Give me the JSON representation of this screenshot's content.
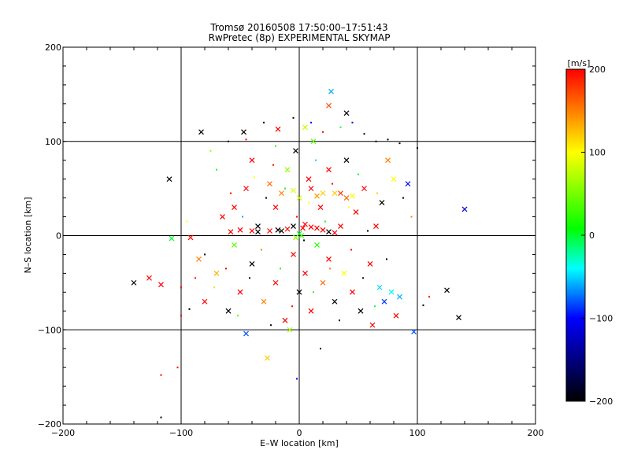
{
  "chart_data": {
    "type": "scatter",
    "title": "Tromsø 20160508 17:50:00–17:51:43",
    "subtitle": "RwPretec (8p) EXPERIMENTAL SKYMAP",
    "xlabel": "E–W location [km]",
    "ylabel": "N–S location [km]",
    "xlim": [
      -200,
      200
    ],
    "ylim": [
      -200,
      200
    ],
    "x_ticks": [
      -200,
      -100,
      0,
      100,
      200
    ],
    "y_ticks": [
      -200,
      -100,
      0,
      100,
      200
    ],
    "x_tick_labels": [
      "−200",
      "−100",
      "0",
      "100",
      "200"
    ],
    "y_tick_labels": [
      "−200",
      "−100",
      "0",
      "100",
      "200"
    ],
    "grid": true,
    "colorbar": {
      "label": "[m/s]",
      "range": [
        -200,
        200
      ],
      "ticks": [
        200,
        100,
        0,
        -100,
        -200
      ],
      "tick_labels": [
        "200",
        "100",
        "0",
        "−100",
        "−200"
      ],
      "colormap": [
        "#000000",
        "#0000ff",
        "#00ffff",
        "#00ff00",
        "#ffff00",
        "#ff0000"
      ]
    },
    "marker_types": [
      "cross",
      "dot"
    ],
    "points": [
      {
        "x": -83,
        "y": 110,
        "v": -200,
        "m": "cross"
      },
      {
        "x": -47,
        "y": 110,
        "v": -200,
        "m": "cross"
      },
      {
        "x": 25,
        "y": 138,
        "v": 170,
        "m": "cross"
      },
      {
        "x": 27,
        "y": 153,
        "v": -60,
        "m": "cross"
      },
      {
        "x": 40,
        "y": 130,
        "v": -200,
        "m": "cross"
      },
      {
        "x": -18,
        "y": 113,
        "v": 200,
        "m": "cross"
      },
      {
        "x": 5,
        "y": 115,
        "v": 80,
        "m": "cross"
      },
      {
        "x": -110,
        "y": 60,
        "v": -200,
        "m": "cross"
      },
      {
        "x": -108,
        "y": -3,
        "v": 0,
        "m": "cross"
      },
      {
        "x": -140,
        "y": -50,
        "v": -200,
        "m": "cross"
      },
      {
        "x": -127,
        "y": -45,
        "v": 200,
        "m": "cross"
      },
      {
        "x": -117,
        "y": -52,
        "v": 200,
        "m": "cross"
      },
      {
        "x": -92,
        "y": -2,
        "v": 200,
        "m": "cross"
      },
      {
        "x": -85,
        "y": -25,
        "v": 150,
        "m": "cross"
      },
      {
        "x": -80,
        "y": -70,
        "v": 200,
        "m": "cross"
      },
      {
        "x": -70,
        "y": -40,
        "v": 130,
        "m": "cross"
      },
      {
        "x": -65,
        "y": 20,
        "v": 200,
        "m": "cross"
      },
      {
        "x": -60,
        "y": -80,
        "v": -200,
        "m": "cross"
      },
      {
        "x": -55,
        "y": 30,
        "v": 200,
        "m": "cross"
      },
      {
        "x": -55,
        "y": -10,
        "v": 40,
        "m": "cross"
      },
      {
        "x": -50,
        "y": -60,
        "v": 200,
        "m": "cross"
      },
      {
        "x": -45,
        "y": 50,
        "v": 200,
        "m": "cross"
      },
      {
        "x": -45,
        "y": -104,
        "v": -80,
        "m": "cross"
      },
      {
        "x": -40,
        "y": 80,
        "v": 200,
        "m": "cross"
      },
      {
        "x": -40,
        "y": -30,
        "v": -200,
        "m": "cross"
      },
      {
        "x": -35,
        "y": 10,
        "v": -200,
        "m": "cross"
      },
      {
        "x": -30,
        "y": -70,
        "v": 150,
        "m": "cross"
      },
      {
        "x": -27,
        "y": -130,
        "v": 120,
        "m": "cross"
      },
      {
        "x": -25,
        "y": 55,
        "v": 160,
        "m": "cross"
      },
      {
        "x": -20,
        "y": 30,
        "v": 200,
        "m": "cross"
      },
      {
        "x": -20,
        "y": -50,
        "v": 200,
        "m": "cross"
      },
      {
        "x": -15,
        "y": 5,
        "v": -200,
        "m": "cross"
      },
      {
        "x": -12,
        "y": -90,
        "v": 200,
        "m": "cross"
      },
      {
        "x": -10,
        "y": 70,
        "v": 60,
        "m": "cross"
      },
      {
        "x": -8,
        "y": -100,
        "v": 70,
        "m": "cross"
      },
      {
        "x": -5,
        "y": -20,
        "v": 200,
        "m": "cross"
      },
      {
        "x": -3,
        "y": 90,
        "v": -200,
        "m": "cross"
      },
      {
        "x": 0,
        "y": 40,
        "v": 80,
        "m": "cross"
      },
      {
        "x": 0,
        "y": -60,
        "v": -200,
        "m": "cross"
      },
      {
        "x": 3,
        "y": 8,
        "v": 200,
        "m": "cross"
      },
      {
        "x": 5,
        "y": -40,
        "v": 200,
        "m": "cross"
      },
      {
        "x": 8,
        "y": 60,
        "v": 200,
        "m": "cross"
      },
      {
        "x": 10,
        "y": -80,
        "v": 200,
        "m": "cross"
      },
      {
        "x": 12,
        "y": 100,
        "v": 40,
        "m": "cross"
      },
      {
        "x": 15,
        "y": -10,
        "v": 20,
        "m": "cross"
      },
      {
        "x": 18,
        "y": 30,
        "v": 200,
        "m": "cross"
      },
      {
        "x": 20,
        "y": -50,
        "v": 160,
        "m": "cross"
      },
      {
        "x": 25,
        "y": 70,
        "v": 200,
        "m": "cross"
      },
      {
        "x": 25,
        "y": -25,
        "v": 200,
        "m": "cross"
      },
      {
        "x": 30,
        "y": 45,
        "v": 120,
        "m": "cross"
      },
      {
        "x": 30,
        "y": -70,
        "v": -200,
        "m": "cross"
      },
      {
        "x": 35,
        "y": 10,
        "v": 200,
        "m": "cross"
      },
      {
        "x": 38,
        "y": -40,
        "v": 100,
        "m": "cross"
      },
      {
        "x": 40,
        "y": 80,
        "v": -200,
        "m": "cross"
      },
      {
        "x": 45,
        "y": -60,
        "v": 200,
        "m": "cross"
      },
      {
        "x": 48,
        "y": 25,
        "v": 200,
        "m": "cross"
      },
      {
        "x": 52,
        "y": -80,
        "v": -200,
        "m": "cross"
      },
      {
        "x": 55,
        "y": 50,
        "v": 200,
        "m": "cross"
      },
      {
        "x": 60,
        "y": -30,
        "v": 200,
        "m": "cross"
      },
      {
        "x": 62,
        "y": -95,
        "v": 200,
        "m": "cross"
      },
      {
        "x": 65,
        "y": 10,
        "v": 200,
        "m": "cross"
      },
      {
        "x": 68,
        "y": -55,
        "v": -50,
        "m": "cross"
      },
      {
        "x": 70,
        "y": 35,
        "v": -200,
        "m": "cross"
      },
      {
        "x": 72,
        "y": -70,
        "v": -90,
        "m": "cross"
      },
      {
        "x": 75,
        "y": 80,
        "v": 150,
        "m": "cross"
      },
      {
        "x": 78,
        "y": -60,
        "v": -40,
        "m": "cross"
      },
      {
        "x": 80,
        "y": 60,
        "v": 100,
        "m": "cross"
      },
      {
        "x": 82,
        "y": -85,
        "v": 200,
        "m": "cross"
      },
      {
        "x": 85,
        "y": -65,
        "v": -60,
        "m": "cross"
      },
      {
        "x": 92,
        "y": 55,
        "v": -100,
        "m": "cross"
      },
      {
        "x": 97,
        "y": -102,
        "v": -80,
        "m": "cross"
      },
      {
        "x": 125,
        "y": -58,
        "v": -200,
        "m": "cross"
      },
      {
        "x": 135,
        "y": -87,
        "v": -200,
        "m": "cross"
      },
      {
        "x": 140,
        "y": 28,
        "v": -110,
        "m": "cross"
      },
      {
        "x": -117,
        "y": -148,
        "v": 200,
        "m": "dot"
      },
      {
        "x": -117,
        "y": -193,
        "v": -200,
        "m": "dot"
      },
      {
        "x": -103,
        "y": -140,
        "v": 200,
        "m": "dot"
      },
      {
        "x": -100,
        "y": -85,
        "v": 200,
        "m": "dot"
      },
      {
        "x": -95,
        "y": 15,
        "v": 100,
        "m": "dot"
      },
      {
        "x": -75,
        "y": 90,
        "v": 60,
        "m": "dot"
      },
      {
        "x": -60,
        "y": 100,
        "v": -200,
        "m": "dot"
      },
      {
        "x": -45,
        "y": 102,
        "v": 200,
        "m": "dot"
      },
      {
        "x": -30,
        "y": 120,
        "v": -200,
        "m": "dot"
      },
      {
        "x": -20,
        "y": 95,
        "v": 20,
        "m": "dot"
      },
      {
        "x": -5,
        "y": 125,
        "v": -200,
        "m": "dot"
      },
      {
        "x": 10,
        "y": 120,
        "v": -100,
        "m": "dot"
      },
      {
        "x": 20,
        "y": 110,
        "v": 200,
        "m": "dot"
      },
      {
        "x": 35,
        "y": 115,
        "v": 0,
        "m": "dot"
      },
      {
        "x": 45,
        "y": 120,
        "v": -120,
        "m": "dot"
      },
      {
        "x": 55,
        "y": 108,
        "v": -200,
        "m": "dot"
      },
      {
        "x": 65,
        "y": 100,
        "v": -200,
        "m": "dot"
      },
      {
        "x": 75,
        "y": 102,
        "v": -200,
        "m": "dot"
      },
      {
        "x": 85,
        "y": 98,
        "v": -200,
        "m": "dot"
      },
      {
        "x": 100,
        "y": 93,
        "v": -200,
        "m": "dot"
      },
      {
        "x": 88,
        "y": 40,
        "v": -200,
        "m": "dot"
      },
      {
        "x": 95,
        "y": 20,
        "v": 150,
        "m": "dot"
      },
      {
        "x": 110,
        "y": -65,
        "v": 200,
        "m": "dot"
      },
      {
        "x": 105,
        "y": -74,
        "v": -200,
        "m": "dot"
      },
      {
        "x": -70,
        "y": 70,
        "v": 0,
        "m": "dot"
      },
      {
        "x": -58,
        "y": 45,
        "v": 200,
        "m": "dot"
      },
      {
        "x": -48,
        "y": 20,
        "v": -60,
        "m": "dot"
      },
      {
        "x": -38,
        "y": 62,
        "v": 100,
        "m": "dot"
      },
      {
        "x": -28,
        "y": 40,
        "v": -200,
        "m": "dot"
      },
      {
        "x": -22,
        "y": 75,
        "v": 200,
        "m": "dot"
      },
      {
        "x": -12,
        "y": 50,
        "v": 0,
        "m": "dot"
      },
      {
        "x": -2,
        "y": 20,
        "v": 200,
        "m": "dot"
      },
      {
        "x": 8,
        "y": 35,
        "v": 100,
        "m": "dot"
      },
      {
        "x": 14,
        "y": 80,
        "v": -50,
        "m": "dot"
      },
      {
        "x": 22,
        "y": 15,
        "v": 0,
        "m": "dot"
      },
      {
        "x": 28,
        "y": 55,
        "v": 200,
        "m": "dot"
      },
      {
        "x": 42,
        "y": 30,
        "v": 100,
        "m": "dot"
      },
      {
        "x": 50,
        "y": 65,
        "v": 0,
        "m": "dot"
      },
      {
        "x": 58,
        "y": 5,
        "v": -200,
        "m": "dot"
      },
      {
        "x": 66,
        "y": 45,
        "v": 120,
        "m": "dot"
      },
      {
        "x": -80,
        "y": -20,
        "v": -200,
        "m": "dot"
      },
      {
        "x": -72,
        "y": -55,
        "v": 80,
        "m": "dot"
      },
      {
        "x": -62,
        "y": -35,
        "v": 200,
        "m": "dot"
      },
      {
        "x": -52,
        "y": -85,
        "v": 40,
        "m": "dot"
      },
      {
        "x": -42,
        "y": -45,
        "v": -200,
        "m": "dot"
      },
      {
        "x": -32,
        "y": -15,
        "v": 150,
        "m": "dot"
      },
      {
        "x": -24,
        "y": -95,
        "v": -200,
        "m": "dot"
      },
      {
        "x": -16,
        "y": -35,
        "v": 0,
        "m": "dot"
      },
      {
        "x": -6,
        "y": -75,
        "v": 200,
        "m": "dot"
      },
      {
        "x": 4,
        "y": -5,
        "v": -200,
        "m": "dot"
      },
      {
        "x": 12,
        "y": -60,
        "v": 0,
        "m": "dot"
      },
      {
        "x": 18,
        "y": -120,
        "v": -200,
        "m": "dot"
      },
      {
        "x": 26,
        "y": -35,
        "v": 150,
        "m": "dot"
      },
      {
        "x": 34,
        "y": -90,
        "v": -200,
        "m": "dot"
      },
      {
        "x": 44,
        "y": -15,
        "v": 200,
        "m": "dot"
      },
      {
        "x": 54,
        "y": -45,
        "v": -200,
        "m": "dot"
      },
      {
        "x": 64,
        "y": -75,
        "v": 0,
        "m": "dot"
      },
      {
        "x": 74,
        "y": -25,
        "v": -200,
        "m": "dot"
      },
      {
        "x": -2,
        "y": -152,
        "v": -100,
        "m": "dot"
      },
      {
        "x": -93,
        "y": -78,
        "v": -200,
        "m": "dot"
      },
      {
        "x": -88,
        "y": -45,
        "v": 200,
        "m": "dot"
      },
      {
        "x": -100,
        "y": -55,
        "v": 200,
        "m": "dot"
      },
      {
        "x": -25,
        "y": 5,
        "v": 200,
        "m": "cross"
      },
      {
        "x": -18,
        "y": 6,
        "v": -200,
        "m": "cross"
      },
      {
        "x": -10,
        "y": 7,
        "v": 200,
        "m": "cross"
      },
      {
        "x": -5,
        "y": 10,
        "v": -200,
        "m": "cross"
      },
      {
        "x": 5,
        "y": 12,
        "v": 200,
        "m": "cross"
      },
      {
        "x": 10,
        "y": 9,
        "v": 200,
        "m": "cross"
      },
      {
        "x": 15,
        "y": 8,
        "v": 200,
        "m": "cross"
      },
      {
        "x": 20,
        "y": 6,
        "v": 200,
        "m": "cross"
      },
      {
        "x": 25,
        "y": 4,
        "v": -200,
        "m": "cross"
      },
      {
        "x": 30,
        "y": 3,
        "v": 200,
        "m": "cross"
      },
      {
        "x": -35,
        "y": 4,
        "v": -200,
        "m": "cross"
      },
      {
        "x": -40,
        "y": 5,
        "v": 200,
        "m": "cross"
      },
      {
        "x": -50,
        "y": 6,
        "v": 200,
        "m": "cross"
      },
      {
        "x": -58,
        "y": 4,
        "v": 200,
        "m": "cross"
      },
      {
        "x": 0,
        "y": 2,
        "v": 0,
        "m": "cross"
      },
      {
        "x": -3,
        "y": -2,
        "v": 60,
        "m": "cross"
      },
      {
        "x": 2,
        "y": 0,
        "v": 30,
        "m": "cross"
      },
      {
        "x": 40,
        "y": 40,
        "v": 160,
        "m": "cross"
      },
      {
        "x": 35,
        "y": 45,
        "v": 180,
        "m": "cross"
      },
      {
        "x": 20,
        "y": 45,
        "v": 120,
        "m": "cross"
      },
      {
        "x": 15,
        "y": 42,
        "v": 140,
        "m": "cross"
      },
      {
        "x": -15,
        "y": 45,
        "v": 150,
        "m": "cross"
      },
      {
        "x": -5,
        "y": 48,
        "v": 90,
        "m": "cross"
      },
      {
        "x": 10,
        "y": 50,
        "v": 200,
        "m": "cross"
      },
      {
        "x": 45,
        "y": 42,
        "v": 100,
        "m": "cross"
      }
    ]
  }
}
